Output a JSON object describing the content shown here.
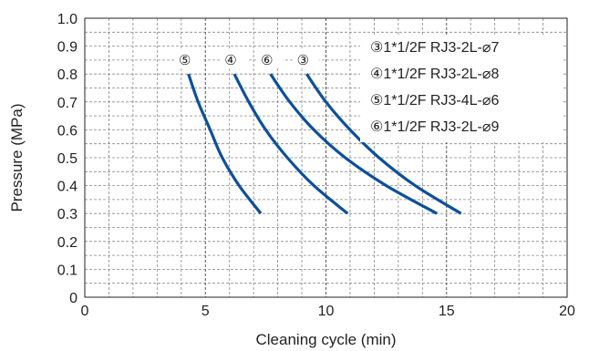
{
  "chart_data": {
    "type": "line",
    "xlabel": "Cleaning cycle (min)",
    "ylabel": "Pressure (MPa)",
    "xlim": [
      0,
      20
    ],
    "ylim": [
      0,
      1.0
    ],
    "x_ticks": [
      "0",
      "5",
      "10",
      "15",
      "20"
    ],
    "y_ticks": [
      "0",
      "0.1",
      "0.2",
      "0.3",
      "0.4",
      "0.5",
      "0.6",
      "0.7",
      "0.8",
      "0.9",
      "1.0"
    ],
    "grid": true,
    "legend_position": "top-right",
    "line_color": "#0d4f9c",
    "series": [
      {
        "marker": "⑤",
        "name": "⑤1*1/2F RJ3-4L-⌀6",
        "points": [
          [
            4.3,
            0.8
          ],
          [
            4.7,
            0.7
          ],
          [
            5.2,
            0.6
          ],
          [
            5.7,
            0.5
          ],
          [
            6.4,
            0.4
          ],
          [
            7.3,
            0.3
          ]
        ]
      },
      {
        "marker": "④",
        "name": "④1*1/2F RJ3-2L-⌀8",
        "points": [
          [
            6.2,
            0.8
          ],
          [
            6.8,
            0.7
          ],
          [
            7.5,
            0.6
          ],
          [
            8.4,
            0.5
          ],
          [
            9.5,
            0.4
          ],
          [
            10.9,
            0.3
          ]
        ]
      },
      {
        "marker": "⑥",
        "name": "⑥1*1/2F RJ3-2L-⌀9",
        "points": [
          [
            7.7,
            0.8
          ],
          [
            8.5,
            0.7
          ],
          [
            9.5,
            0.6
          ],
          [
            10.8,
            0.5
          ],
          [
            12.5,
            0.4
          ],
          [
            14.6,
            0.3
          ]
        ]
      },
      {
        "marker": "③",
        "name": "③1*1/2F RJ3-2L-⌀7",
        "points": [
          [
            9.2,
            0.8
          ],
          [
            10.0,
            0.7
          ],
          [
            11.0,
            0.6
          ],
          [
            12.2,
            0.5
          ],
          [
            13.7,
            0.4
          ],
          [
            15.6,
            0.3
          ]
        ]
      }
    ],
    "legend_order": [
      3,
      1,
      0,
      2
    ]
  }
}
